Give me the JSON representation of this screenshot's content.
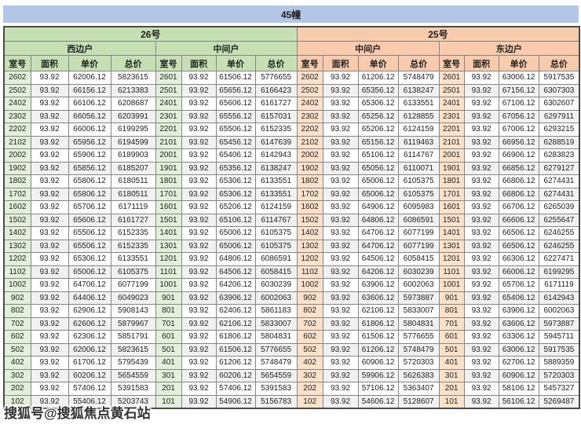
{
  "watermark_text": "搜狐号@搜狐焦点黄石站",
  "colors": {
    "title_bar": "#b4c6e7",
    "green_header": "#c6e0b4",
    "green_tint": "#e2efda",
    "orange_header": "#f8cbad",
    "orange_tint": "#fbe0ca",
    "alt_row": "#f1f1f1",
    "grid_border": "#858585"
  },
  "chart_data": {
    "type": "table",
    "title": "45幢",
    "column_headers": [
      "室号",
      "面积",
      "单价",
      "总价"
    ],
    "building_groups": [
      {
        "label": "26号",
        "theme": "green",
        "sections": [
          {
            "label": "西边户",
            "rows": [
              [
                "2602",
                "93.92",
                "62006.12",
                "5823615"
              ],
              [
                "2502",
                "93.92",
                "66156.12",
                "6213383"
              ],
              [
                "2402",
                "93.92",
                "66106.12",
                "6208687"
              ],
              [
                "2302",
                "93.92",
                "66056.12",
                "6203991"
              ],
              [
                "2202",
                "93.92",
                "66006.12",
                "6199295"
              ],
              [
                "2102",
                "93.92",
                "65956.12",
                "6194599"
              ],
              [
                "2002",
                "93.92",
                "65906.12",
                "6189903"
              ],
              [
                "1902",
                "93.92",
                "65856.12",
                "6185207"
              ],
              [
                "1802",
                "93.92",
                "65806.12",
                "6180511"
              ],
              [
                "1702",
                "93.92",
                "65806.12",
                "6180511"
              ],
              [
                "1602",
                "93.92",
                "65706.12",
                "6171119"
              ],
              [
                "1502",
                "93.92",
                "65606.12",
                "6161727"
              ],
              [
                "1402",
                "93.92",
                "65506.12",
                "6152335"
              ],
              [
                "1302",
                "93.92",
                "65506.12",
                "6152335"
              ],
              [
                "1202",
                "93.92",
                "65306.12",
                "6133551"
              ],
              [
                "1102",
                "93.92",
                "65006.12",
                "6105375"
              ],
              [
                "1002",
                "93.92",
                "64706.12",
                "6077199"
              ],
              [
                "902",
                "93.92",
                "64406.12",
                "6049023"
              ],
              [
                "802",
                "93.92",
                "62906.12",
                "5908143"
              ],
              [
                "702",
                "93.92",
                "62606.12",
                "5879967"
              ],
              [
                "602",
                "93.92",
                "62306.12",
                "5851791"
              ],
              [
                "502",
                "93.92",
                "62006.12",
                "5823615"
              ],
              [
                "402",
                "93.92",
                "61706.12",
                "5795439"
              ],
              [
                "302",
                "93.92",
                "60206.12",
                "5654559"
              ],
              [
                "202",
                "93.92",
                "57406.12",
                "5391583"
              ],
              [
                "102",
                "93.92",
                "55406.12",
                "5203743"
              ]
            ]
          },
          {
            "label": "中间户",
            "rows": [
              [
                "2601",
                "93.92",
                "61506.12",
                "5776655"
              ],
              [
                "2501",
                "93.92",
                "65656.12",
                "6166423"
              ],
              [
                "2401",
                "93.92",
                "65606.12",
                "6161727"
              ],
              [
                "2301",
                "93.92",
                "65556.12",
                "6157031"
              ],
              [
                "2201",
                "93.92",
                "65506.12",
                "6152335"
              ],
              [
                "2101",
                "93.92",
                "65456.12",
                "6147639"
              ],
              [
                "2001",
                "93.92",
                "65406.12",
                "6142943"
              ],
              [
                "1901",
                "93.92",
                "65356.12",
                "6138247"
              ],
              [
                "1801",
                "93.92",
                "65306.12",
                "6133551"
              ],
              [
                "1701",
                "93.92",
                "65306.12",
                "6133551"
              ],
              [
                "1601",
                "93.92",
                "65206.12",
                "6124159"
              ],
              [
                "1501",
                "93.92",
                "65106.12",
                "6114767"
              ],
              [
                "1401",
                "93.92",
                "65006.12",
                "6105375"
              ],
              [
                "1301",
                "93.92",
                "65006.12",
                "6105375"
              ],
              [
                "1201",
                "93.92",
                "64806.12",
                "6086591"
              ],
              [
                "1101",
                "93.92",
                "64506.12",
                "6058415"
              ],
              [
                "1001",
                "93.92",
                "64206.12",
                "6030239"
              ],
              [
                "901",
                "93.92",
                "63906.12",
                "6002063"
              ],
              [
                "801",
                "93.92",
                "62406.12",
                "5861183"
              ],
              [
                "701",
                "93.92",
                "62106.12",
                "5833007"
              ],
              [
                "601",
                "93.92",
                "61806.12",
                "5804831"
              ],
              [
                "501",
                "93.92",
                "61506.12",
                "5776655"
              ],
              [
                "401",
                "93.92",
                "61206.12",
                "5748479"
              ],
              [
                "301",
                "93.92",
                "60206.12",
                "5654559"
              ],
              [
                "201",
                "93.92",
                "57406.12",
                "5391583"
              ],
              [
                "101",
                "93.92",
                "54906.12",
                "5156783"
              ]
            ]
          }
        ]
      },
      {
        "label": "25号",
        "theme": "orange",
        "sections": [
          {
            "label": "中间户",
            "rows": [
              [
                "2602",
                "93.92",
                "61206.12",
                "5748479"
              ],
              [
                "2502",
                "93.92",
                "65356.12",
                "6138247"
              ],
              [
                "2402",
                "93.92",
                "65306.12",
                "6133551"
              ],
              [
                "2302",
                "93.92",
                "65256.12",
                "6128855"
              ],
              [
                "2202",
                "93.92",
                "65206.12",
                "6124159"
              ],
              [
                "2102",
                "93.92",
                "65156.12",
                "6119463"
              ],
              [
                "2002",
                "93.92",
                "65106.12",
                "6114767"
              ],
              [
                "1902",
                "93.92",
                "65056.12",
                "6110071"
              ],
              [
                "1802",
                "93.92",
                "65006.12",
                "6105375"
              ],
              [
                "1702",
                "93.92",
                "65006.12",
                "6105375"
              ],
              [
                "1602",
                "93.92",
                "64906.12",
                "6095983"
              ],
              [
                "1502",
                "93.92",
                "64806.12",
                "6086591"
              ],
              [
                "1402",
                "93.92",
                "64706.12",
                "6077199"
              ],
              [
                "1302",
                "93.92",
                "64706.12",
                "6077199"
              ],
              [
                "1202",
                "93.92",
                "64506.12",
                "6058415"
              ],
              [
                "1102",
                "93.92",
                "64206.12",
                "6030239"
              ],
              [
                "1002",
                "93.92",
                "63906.12",
                "6002063"
              ],
              [
                "902",
                "93.92",
                "63606.12",
                "5973887"
              ],
              [
                "802",
                "93.92",
                "62106.12",
                "5833007"
              ],
              [
                "702",
                "93.92",
                "61806.12",
                "5804831"
              ],
              [
                "602",
                "93.92",
                "61506.12",
                "5776655"
              ],
              [
                "502",
                "93.92",
                "61206.12",
                "5748479"
              ],
              [
                "402",
                "93.92",
                "60906.12",
                "5720303"
              ],
              [
                "302",
                "93.92",
                "59906.12",
                "5626383"
              ],
              [
                "202",
                "93.92",
                "57106.12",
                "5363407"
              ],
              [
                "102",
                "93.92",
                "54606.12",
                "5128607"
              ]
            ]
          },
          {
            "label": "东边户",
            "rows": [
              [
                "2601",
                "93.92",
                "63006.12",
                "5917535"
              ],
              [
                "2501",
                "93.92",
                "67156.12",
                "6307303"
              ],
              [
                "2401",
                "93.92",
                "67106.12",
                "6302607"
              ],
              [
                "2301",
                "93.92",
                "67056.12",
                "6297911"
              ],
              [
                "2201",
                "93.92",
                "67006.12",
                "6293215"
              ],
              [
                "2101",
                "93.92",
                "66956.12",
                "6288519"
              ],
              [
                "2001",
                "93.92",
                "66906.12",
                "6283823"
              ],
              [
                "1901",
                "93.92",
                "66856.12",
                "6279127"
              ],
              [
                "1801",
                "93.92",
                "66806.12",
                "6274431"
              ],
              [
                "1701",
                "93.92",
                "66806.12",
                "6274431"
              ],
              [
                "1601",
                "93.92",
                "66706.12",
                "6265039"
              ],
              [
                "1501",
                "93.92",
                "66606.12",
                "6255647"
              ],
              [
                "1401",
                "93.92",
                "66506.12",
                "6246255"
              ],
              [
                "1301",
                "93.92",
                "66506.12",
                "6246255"
              ],
              [
                "1201",
                "93.92",
                "66306.12",
                "6227471"
              ],
              [
                "1101",
                "93.92",
                "66006.12",
                "6199295"
              ],
              [
                "1001",
                "93.92",
                "65706.12",
                "6171119"
              ],
              [
                "901",
                "93.92",
                "65406.12",
                "6142943"
              ],
              [
                "801",
                "93.92",
                "63906.12",
                "6002063"
              ],
              [
                "701",
                "93.92",
                "63606.12",
                "5973887"
              ],
              [
                "601",
                "93.92",
                "63306.12",
                "5945711"
              ],
              [
                "501",
                "93.92",
                "63006.12",
                "5917535"
              ],
              [
                "401",
                "93.92",
                "62706.12",
                "5889359"
              ],
              [
                "301",
                "93.92",
                "60906.12",
                "5720303"
              ],
              [
                "201",
                "93.92",
                "58106.12",
                "5457327"
              ],
              [
                "101",
                "93.92",
                "56106.12",
                "5269487"
              ]
            ]
          }
        ]
      }
    ]
  }
}
